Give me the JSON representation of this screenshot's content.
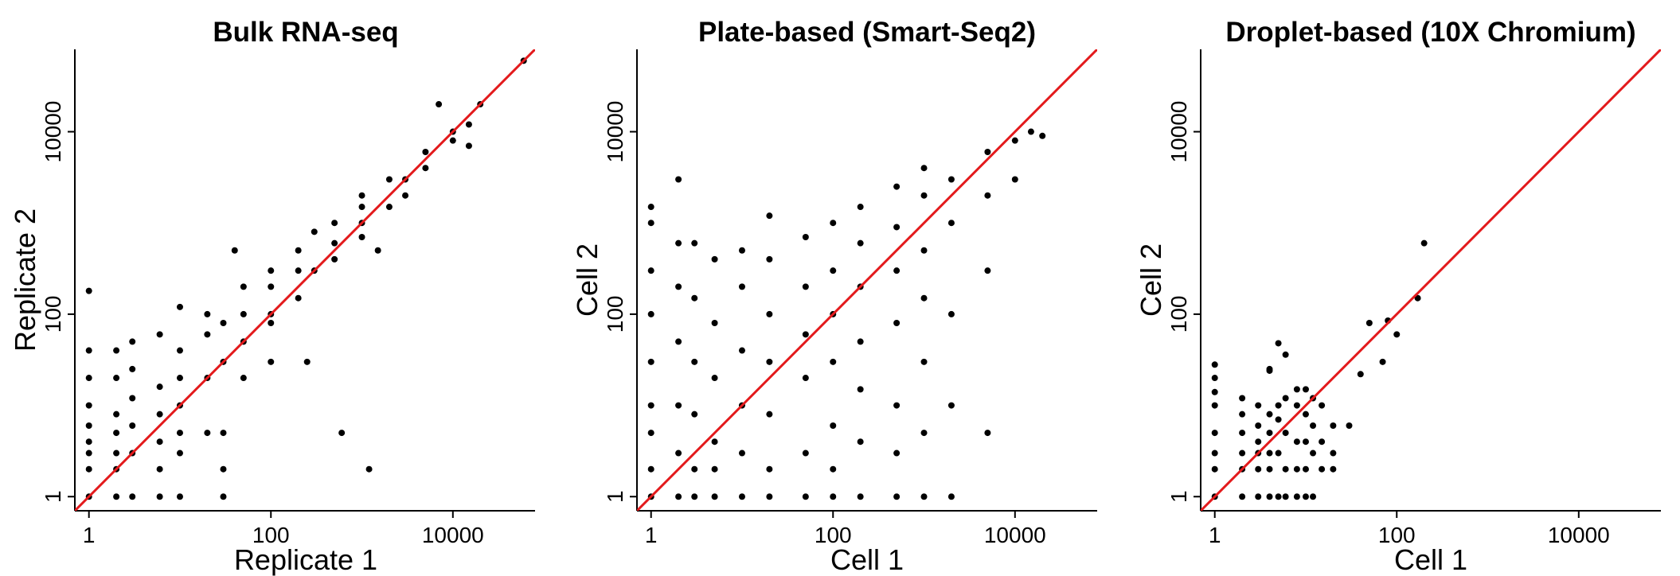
{
  "chart_data": [
    {
      "type": "scatter",
      "title": "Bulk RNA-seq",
      "xlabel": "Replicate 1",
      "ylabel": "Replicate 2",
      "log_scale": true,
      "xlim": [
        0.7,
        80000
      ],
      "ylim": [
        0.7,
        80000
      ],
      "x_ticks": [
        1,
        100,
        10000
      ],
      "y_ticks": [
        1,
        100,
        10000
      ],
      "x_tick_labels": [
        "1",
        "100",
        "10000"
      ],
      "y_tick_labels": [
        "1",
        "100",
        "10000"
      ],
      "grid": false,
      "point_color": "#000000",
      "reference_line": {
        "type": "y=x",
        "color": "#e31a1c"
      },
      "series": [
        {
          "points": [
            [
              1,
              1
            ],
            [
              1,
              2
            ],
            [
              1,
              3
            ],
            [
              1,
              4
            ],
            [
              1,
              6
            ],
            [
              1,
              10
            ],
            [
              1,
              20
            ],
            [
              1,
              40
            ],
            [
              1,
              180
            ],
            [
              2,
              1
            ],
            [
              2,
              2
            ],
            [
              2,
              3
            ],
            [
              2,
              5
            ],
            [
              2,
              8
            ],
            [
              2,
              20
            ],
            [
              2,
              40
            ],
            [
              3,
              1
            ],
            [
              3,
              3
            ],
            [
              3,
              6
            ],
            [
              3,
              12
            ],
            [
              3,
              25
            ],
            [
              3,
              50
            ],
            [
              6,
              1
            ],
            [
              6,
              2
            ],
            [
              6,
              4
            ],
            [
              6,
              8
            ],
            [
              6,
              16
            ],
            [
              6,
              60
            ],
            [
              10,
              1
            ],
            [
              10,
              3
            ],
            [
              10,
              5
            ],
            [
              10,
              10
            ],
            [
              10,
              20
            ],
            [
              10,
              40
            ],
            [
              10,
              120
            ],
            [
              30,
              1
            ],
            [
              30,
              2
            ],
            [
              30,
              5
            ],
            [
              30,
              30
            ],
            [
              30,
              80
            ],
            [
              20,
              5
            ],
            [
              20,
              20
            ],
            [
              20,
              60
            ],
            [
              20,
              100
            ],
            [
              50,
              20
            ],
            [
              50,
              50
            ],
            [
              50,
              100
            ],
            [
              50,
              200
            ],
            [
              40,
              500
            ],
            [
              100,
              30
            ],
            [
              100,
              80
            ],
            [
              100,
              100
            ],
            [
              100,
              200
            ],
            [
              100,
              300
            ],
            [
              200,
              150
            ],
            [
              200,
              300
            ],
            [
              200,
              500
            ],
            [
              300,
              300
            ],
            [
              300,
              800
            ],
            [
              500,
              400
            ],
            [
              500,
              600
            ],
            [
              500,
              1000
            ],
            [
              600,
              5
            ],
            [
              1000,
              700
            ],
            [
              1000,
              1000
            ],
            [
              1000,
              2000
            ],
            [
              1000,
              1500
            ],
            [
              2000,
              1500
            ],
            [
              2000,
              3000
            ],
            [
              3000,
              2000
            ],
            [
              3000,
              3000
            ],
            [
              5000,
              4000
            ],
            [
              5000,
              6000
            ],
            [
              7000,
              20000
            ],
            [
              10000,
              8000
            ],
            [
              10000,
              10000
            ],
            [
              15000,
              12000
            ],
            [
              15000,
              7000
            ],
            [
              20000,
              20000
            ],
            [
              60000,
              60000
            ],
            [
              1500,
              500
            ],
            [
              250,
              30
            ],
            [
              1200,
              2
            ]
          ]
        }
      ]
    },
    {
      "type": "scatter",
      "title": "Plate-based (Smart-Seq2)",
      "xlabel": "Cell 1",
      "ylabel": "Cell 2",
      "log_scale": true,
      "xlim": [
        0.7,
        80000
      ],
      "ylim": [
        0.7,
        80000
      ],
      "x_ticks": [
        1,
        100,
        10000
      ],
      "y_ticks": [
        1,
        100,
        10000
      ],
      "x_tick_labels": [
        "1",
        "100",
        "10000"
      ],
      "y_tick_labels": [
        "1",
        "100",
        "10000"
      ],
      "grid": false,
      "point_color": "#000000",
      "reference_line": {
        "type": "y=x",
        "color": "#e31a1c"
      },
      "series": [
        {
          "points": [
            [
              1,
              1
            ],
            [
              1,
              2
            ],
            [
              1,
              5
            ],
            [
              1,
              10
            ],
            [
              1,
              30
            ],
            [
              1,
              100
            ],
            [
              1,
              300
            ],
            [
              1,
              1000
            ],
            [
              1,
              1500
            ],
            [
              2,
              1
            ],
            [
              2,
              3
            ],
            [
              2,
              10
            ],
            [
              2,
              50
            ],
            [
              2,
              200
            ],
            [
              2,
              600
            ],
            [
              2,
              3000
            ],
            [
              3,
              1
            ],
            [
              3,
              2
            ],
            [
              3,
              8
            ],
            [
              3,
              30
            ],
            [
              3,
              150
            ],
            [
              3,
              600
            ],
            [
              5,
              1
            ],
            [
              5,
              2
            ],
            [
              5,
              4
            ],
            [
              5,
              20
            ],
            [
              5,
              80
            ],
            [
              5,
              400
            ],
            [
              10,
              1
            ],
            [
              10,
              3
            ],
            [
              10,
              10
            ],
            [
              10,
              40
            ],
            [
              10,
              200
            ],
            [
              10,
              500
            ],
            [
              20,
              1
            ],
            [
              20,
              2
            ],
            [
              20,
              8
            ],
            [
              20,
              30
            ],
            [
              20,
              100
            ],
            [
              20,
              400
            ],
            [
              20,
              1200
            ],
            [
              50,
              1
            ],
            [
              50,
              3
            ],
            [
              50,
              20
            ],
            [
              50,
              60
            ],
            [
              50,
              200
            ],
            [
              50,
              700
            ],
            [
              100,
              1
            ],
            [
              100,
              2
            ],
            [
              100,
              6
            ],
            [
              100,
              30
            ],
            [
              100,
              100
            ],
            [
              100,
              300
            ],
            [
              100,
              1000
            ],
            [
              200,
              1
            ],
            [
              200,
              4
            ],
            [
              200,
              15
            ],
            [
              200,
              50
            ],
            [
              200,
              200
            ],
            [
              200,
              600
            ],
            [
              200,
              1500
            ],
            [
              500,
              1
            ],
            [
              500,
              3
            ],
            [
              500,
              10
            ],
            [
              500,
              80
            ],
            [
              500,
              300
            ],
            [
              500,
              900
            ],
            [
              500,
              2500
            ],
            [
              1000,
              1
            ],
            [
              1000,
              5
            ],
            [
              1000,
              30
            ],
            [
              1000,
              150
            ],
            [
              1000,
              500
            ],
            [
              1000,
              2000
            ],
            [
              1000,
              4000
            ],
            [
              2000,
              1
            ],
            [
              2000,
              10
            ],
            [
              2000,
              100
            ],
            [
              2000,
              1000
            ],
            [
              2000,
              3000
            ],
            [
              5000,
              5
            ],
            [
              5000,
              300
            ],
            [
              5000,
              2000
            ],
            [
              5000,
              6000
            ],
            [
              10000,
              3000
            ],
            [
              10000,
              8000
            ],
            [
              15000,
              10000
            ],
            [
              20000,
              9000
            ]
          ]
        }
      ]
    },
    {
      "type": "scatter",
      "title": "Droplet-based (10X Chromium)",
      "xlabel": "Cell 1",
      "ylabel": "Cell 2",
      "log_scale": true,
      "xlim": [
        0.7,
        80000
      ],
      "ylim": [
        0.7,
        80000
      ],
      "x_ticks": [
        1,
        100,
        10000
      ],
      "y_ticks": [
        1,
        100,
        10000
      ],
      "x_tick_labels": [
        "1",
        "100",
        "10000"
      ],
      "y_tick_labels": [
        "1",
        "100",
        "10000"
      ],
      "grid": false,
      "point_color": "#000000",
      "reference_line": {
        "type": "y=x",
        "color": "#e31a1c"
      },
      "series": [
        {
          "points": [
            [
              1,
              1
            ],
            [
              1,
              2
            ],
            [
              1,
              3
            ],
            [
              1,
              5
            ],
            [
              1,
              10
            ],
            [
              1,
              14
            ],
            [
              1,
              20
            ],
            [
              1,
              28
            ],
            [
              2,
              1
            ],
            [
              2,
              2
            ],
            [
              2,
              3
            ],
            [
              2,
              5
            ],
            [
              2,
              8
            ],
            [
              2,
              12
            ],
            [
              3,
              1
            ],
            [
              3,
              2
            ],
            [
              3,
              3
            ],
            [
              3,
              4
            ],
            [
              3,
              6
            ],
            [
              3,
              10
            ],
            [
              4,
              1
            ],
            [
              4,
              2
            ],
            [
              4,
              3
            ],
            [
              4,
              5
            ],
            [
              4,
              8
            ],
            [
              4,
              24
            ],
            [
              4,
              25
            ],
            [
              5,
              1
            ],
            [
              5,
              3
            ],
            [
              5,
              7
            ],
            [
              5,
              10
            ],
            [
              5,
              48
            ],
            [
              6,
              1
            ],
            [
              6,
              2
            ],
            [
              6,
              5
            ],
            [
              6,
              12
            ],
            [
              6,
              36
            ],
            [
              8,
              1
            ],
            [
              8,
              2
            ],
            [
              8,
              4
            ],
            [
              8,
              10
            ],
            [
              8,
              15
            ],
            [
              10,
              1
            ],
            [
              10,
              2
            ],
            [
              10,
              4
            ],
            [
              10,
              8
            ],
            [
              10,
              15
            ],
            [
              12,
              1
            ],
            [
              12,
              3
            ],
            [
              12,
              6
            ],
            [
              12,
              12
            ],
            [
              15,
              2
            ],
            [
              15,
              4
            ],
            [
              15,
              10
            ],
            [
              20,
              2
            ],
            [
              20,
              3
            ],
            [
              20,
              6
            ],
            [
              30,
              6
            ],
            [
              40,
              22
            ],
            [
              50,
              80
            ],
            [
              70,
              30
            ],
            [
              80,
              85
            ],
            [
              100,
              60
            ],
            [
              170,
              150
            ],
            [
              200,
              600
            ]
          ]
        }
      ]
    }
  ]
}
